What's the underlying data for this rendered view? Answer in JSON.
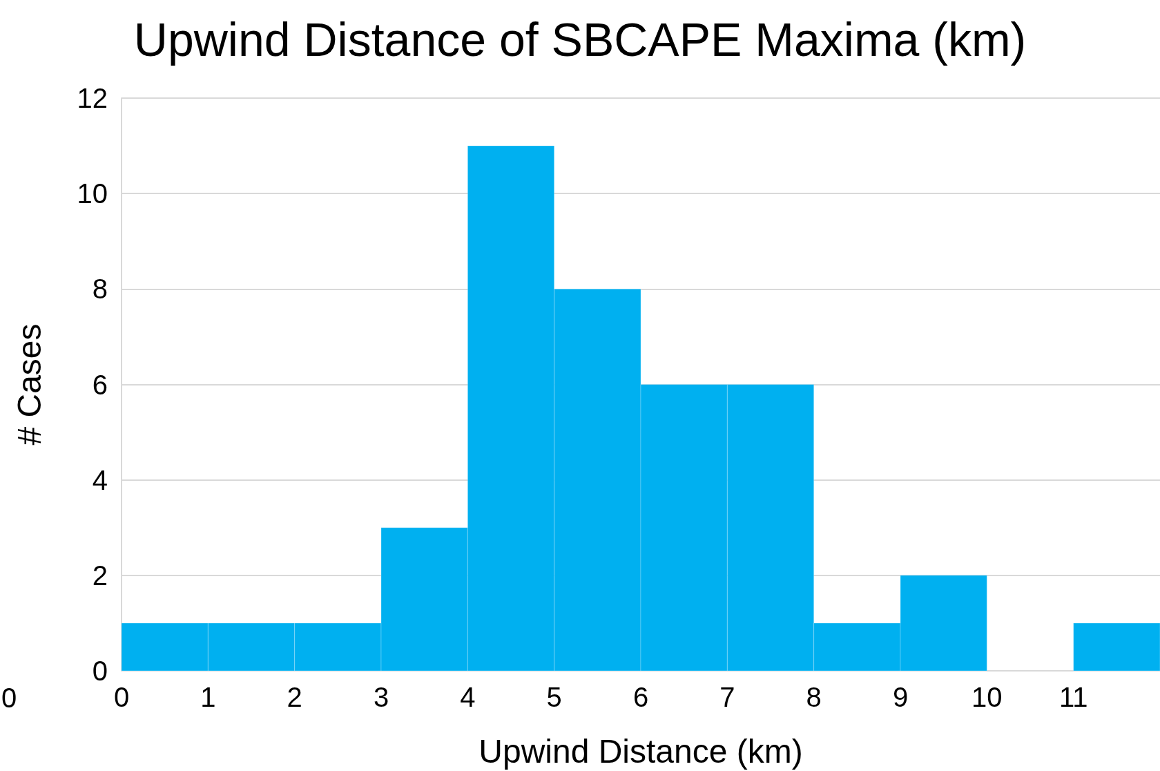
{
  "chart_data": {
    "type": "histogram",
    "title": "Upwind Distance of SBCAPE Maxima (km)",
    "xlabel": "Upwind Distance (km)",
    "ylabel": "# Cases",
    "bins": [
      0,
      1,
      2,
      3,
      4,
      5,
      6,
      7,
      8,
      9,
      10,
      11,
      12
    ],
    "values": [
      1,
      1,
      1,
      3,
      11,
      8,
      6,
      6,
      1,
      2,
      0,
      1
    ],
    "color": "#00b0f0",
    "xlim": [
      0,
      12
    ],
    "xticks": [
      0,
      1,
      2,
      3,
      4,
      5,
      6,
      7,
      8,
      9,
      10,
      11
    ],
    "ylim": [
      0,
      12
    ],
    "yticks": [
      0,
      2,
      4,
      6,
      8,
      10,
      12
    ],
    "grid": "y",
    "annotations": [
      "0"
    ]
  }
}
